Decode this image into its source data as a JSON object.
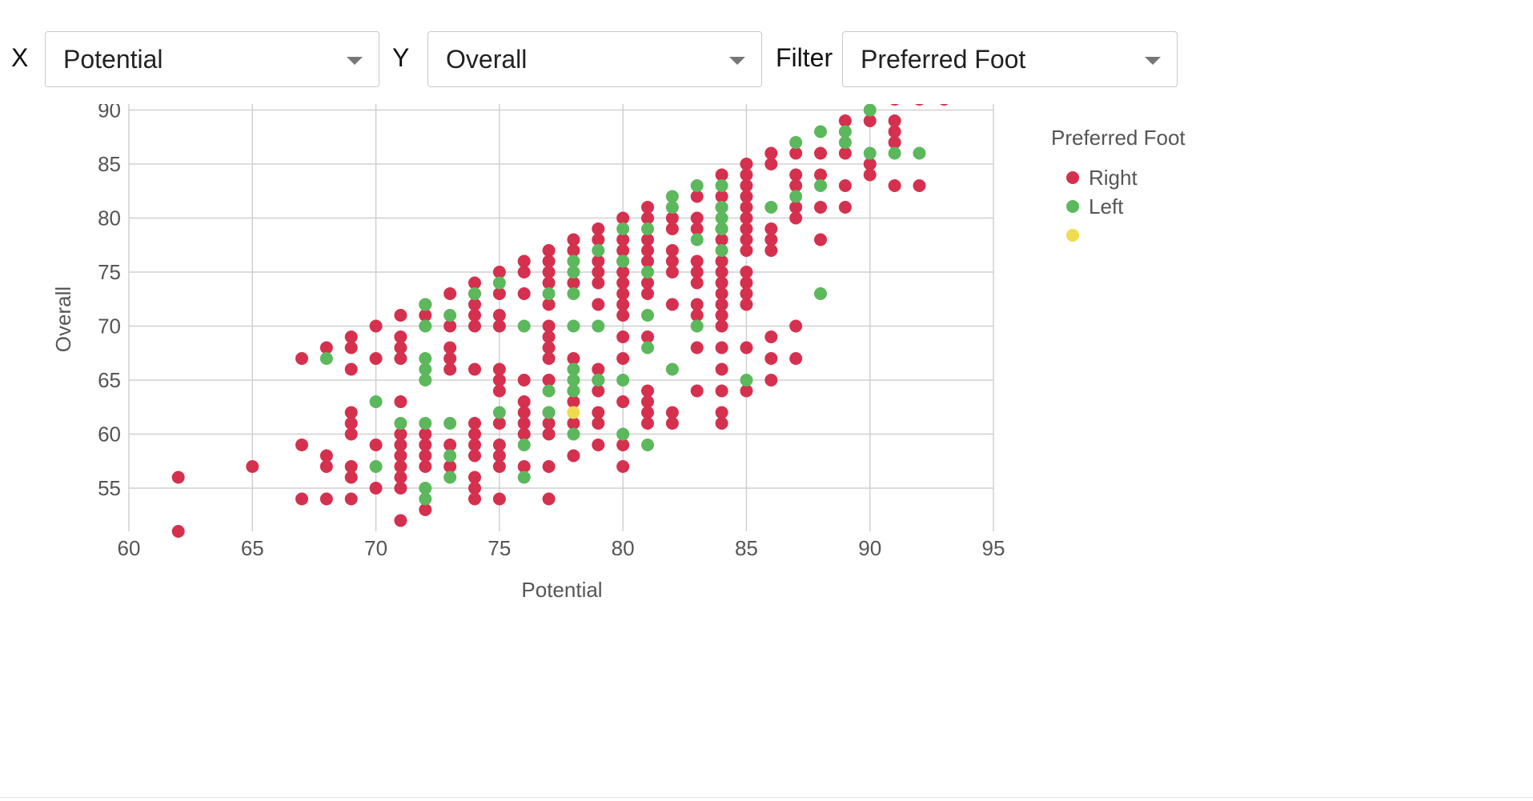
{
  "controls": {
    "x_label": "X",
    "x_value": "Potential",
    "y_label": "Y",
    "y_value": "Overall",
    "filter_label": "Filter",
    "filter_value": "Preferred Foot"
  },
  "chart_data": {
    "type": "scatter",
    "xlabel": "Potential",
    "ylabel": "Overall",
    "xlim": [
      60,
      95
    ],
    "ylim": [
      51,
      91
    ],
    "x_ticks": [
      60,
      65,
      70,
      75,
      80,
      85,
      90,
      95
    ],
    "y_ticks": [
      55,
      60,
      65,
      70,
      75,
      80,
      85,
      90
    ],
    "grid": true,
    "legend": {
      "title": "Preferred Foot",
      "placement": "right"
    },
    "series": [
      {
        "name": "Right",
        "color": "#d6304f",
        "points": [
          [
            62,
            56
          ],
          [
            62,
            51
          ],
          [
            65,
            57
          ],
          [
            67,
            67
          ],
          [
            67,
            59
          ],
          [
            67,
            54
          ],
          [
            68,
            68
          ],
          [
            68,
            58
          ],
          [
            68,
            57
          ],
          [
            68,
            54
          ],
          [
            69,
            69
          ],
          [
            69,
            68
          ],
          [
            69,
            66
          ],
          [
            69,
            62
          ],
          [
            69,
            61
          ],
          [
            69,
            60
          ],
          [
            69,
            57
          ],
          [
            69,
            56
          ],
          [
            69,
            54
          ],
          [
            70,
            70
          ],
          [
            70,
            67
          ],
          [
            70,
            59
          ],
          [
            70,
            55
          ],
          [
            71,
            71
          ],
          [
            71,
            69
          ],
          [
            71,
            68
          ],
          [
            71,
            67
          ],
          [
            71,
            63
          ],
          [
            71,
            60
          ],
          [
            71,
            59
          ],
          [
            71,
            58
          ],
          [
            71,
            57
          ],
          [
            71,
            56
          ],
          [
            71,
            55
          ],
          [
            71,
            52
          ],
          [
            72,
            72
          ],
          [
            72,
            71
          ],
          [
            72,
            60
          ],
          [
            72,
            59
          ],
          [
            72,
            58
          ],
          [
            72,
            57
          ],
          [
            72,
            53
          ],
          [
            73,
            73
          ],
          [
            73,
            70
          ],
          [
            73,
            68
          ],
          [
            73,
            67
          ],
          [
            73,
            66
          ],
          [
            73,
            59
          ],
          [
            73,
            57
          ],
          [
            74,
            74
          ],
          [
            74,
            73
          ],
          [
            74,
            72
          ],
          [
            74,
            71
          ],
          [
            74,
            70
          ],
          [
            74,
            66
          ],
          [
            74,
            61
          ],
          [
            74,
            60
          ],
          [
            74,
            59
          ],
          [
            74,
            58
          ],
          [
            74,
            56
          ],
          [
            74,
            55
          ],
          [
            74,
            54
          ],
          [
            75,
            75
          ],
          [
            75,
            73
          ],
          [
            75,
            71
          ],
          [
            75,
            70
          ],
          [
            75,
            66
          ],
          [
            75,
            65
          ],
          [
            75,
            64
          ],
          [
            75,
            61
          ],
          [
            75,
            59
          ],
          [
            75,
            58
          ],
          [
            75,
            57
          ],
          [
            75,
            54
          ],
          [
            76,
            76
          ],
          [
            76,
            75
          ],
          [
            76,
            73
          ],
          [
            76,
            65
          ],
          [
            76,
            63
          ],
          [
            76,
            62
          ],
          [
            76,
            61
          ],
          [
            76,
            60
          ],
          [
            76,
            57
          ],
          [
            77,
            77
          ],
          [
            77,
            76
          ],
          [
            77,
            75
          ],
          [
            77,
            74
          ],
          [
            77,
            72
          ],
          [
            77,
            70
          ],
          [
            77,
            69
          ],
          [
            77,
            68
          ],
          [
            77,
            67
          ],
          [
            77,
            65
          ],
          [
            77,
            62
          ],
          [
            77,
            61
          ],
          [
            77,
            60
          ],
          [
            77,
            57
          ],
          [
            77,
            54
          ],
          [
            78,
            78
          ],
          [
            78,
            77
          ],
          [
            78,
            74
          ],
          [
            78,
            67
          ],
          [
            78,
            64
          ],
          [
            78,
            63
          ],
          [
            78,
            61
          ],
          [
            78,
            58
          ],
          [
            79,
            79
          ],
          [
            79,
            78
          ],
          [
            79,
            76
          ],
          [
            79,
            75
          ],
          [
            79,
            74
          ],
          [
            79,
            72
          ],
          [
            79,
            66
          ],
          [
            79,
            65
          ],
          [
            79,
            64
          ],
          [
            79,
            62
          ],
          [
            79,
            61
          ],
          [
            79,
            59
          ],
          [
            80,
            80
          ],
          [
            80,
            78
          ],
          [
            80,
            77
          ],
          [
            80,
            76
          ],
          [
            80,
            75
          ],
          [
            80,
            74
          ],
          [
            80,
            73
          ],
          [
            80,
            72
          ],
          [
            80,
            71
          ],
          [
            80,
            69
          ],
          [
            80,
            67
          ],
          [
            80,
            63
          ],
          [
            80,
            59
          ],
          [
            80,
            57
          ],
          [
            81,
            81
          ],
          [
            81,
            80
          ],
          [
            81,
            78
          ],
          [
            81,
            77
          ],
          [
            81,
            76
          ],
          [
            81,
            74
          ],
          [
            81,
            73
          ],
          [
            81,
            69
          ],
          [
            81,
            64
          ],
          [
            81,
            63
          ],
          [
            81,
            62
          ],
          [
            81,
            61
          ],
          [
            82,
            80
          ],
          [
            82,
            79
          ],
          [
            82,
            77
          ],
          [
            82,
            76
          ],
          [
            82,
            75
          ],
          [
            82,
            72
          ],
          [
            82,
            62
          ],
          [
            82,
            61
          ],
          [
            83,
            82
          ],
          [
            83,
            80
          ],
          [
            83,
            79
          ],
          [
            83,
            76
          ],
          [
            83,
            75
          ],
          [
            83,
            74
          ],
          [
            83,
            72
          ],
          [
            83,
            71
          ],
          [
            83,
            68
          ],
          [
            83,
            64
          ],
          [
            84,
            84
          ],
          [
            84,
            82
          ],
          [
            84,
            81
          ],
          [
            84,
            79
          ],
          [
            84,
            78
          ],
          [
            84,
            76
          ],
          [
            84,
            75
          ],
          [
            84,
            74
          ],
          [
            84,
            73
          ],
          [
            84,
            72
          ],
          [
            84,
            71
          ],
          [
            84,
            70
          ],
          [
            84,
            68
          ],
          [
            84,
            66
          ],
          [
            84,
            64
          ],
          [
            84,
            62
          ],
          [
            84,
            61
          ],
          [
            85,
            85
          ],
          [
            85,
            84
          ],
          [
            85,
            83
          ],
          [
            85,
            82
          ],
          [
            85,
            81
          ],
          [
            85,
            80
          ],
          [
            85,
            79
          ],
          [
            85,
            78
          ],
          [
            85,
            77
          ],
          [
            85,
            75
          ],
          [
            85,
            74
          ],
          [
            85,
            73
          ],
          [
            85,
            72
          ],
          [
            85,
            68
          ],
          [
            85,
            64
          ],
          [
            86,
            86
          ],
          [
            86,
            85
          ],
          [
            86,
            79
          ],
          [
            86,
            78
          ],
          [
            86,
            77
          ],
          [
            86,
            69
          ],
          [
            86,
            67
          ],
          [
            86,
            65
          ],
          [
            87,
            86
          ],
          [
            87,
            84
          ],
          [
            87,
            83
          ],
          [
            87,
            81
          ],
          [
            87,
            80
          ],
          [
            87,
            70
          ],
          [
            87,
            67
          ],
          [
            88,
            86
          ],
          [
            88,
            84
          ],
          [
            88,
            81
          ],
          [
            88,
            78
          ],
          [
            89,
            89
          ],
          [
            89,
            86
          ],
          [
            89,
            83
          ],
          [
            89,
            81
          ],
          [
            90,
            89
          ],
          [
            90,
            85
          ],
          [
            90,
            84
          ],
          [
            91,
            91
          ],
          [
            91,
            89
          ],
          [
            91,
            88
          ],
          [
            91,
            87
          ],
          [
            91,
            83
          ],
          [
            92,
            91
          ],
          [
            92,
            83
          ],
          [
            93,
            91
          ]
        ]
      },
      {
        "name": "Left",
        "color": "#5cb85c",
        "points": [
          [
            68,
            67
          ],
          [
            70,
            63
          ],
          [
            70,
            57
          ],
          [
            71,
            61
          ],
          [
            72,
            72
          ],
          [
            72,
            70
          ],
          [
            72,
            67
          ],
          [
            72,
            66
          ],
          [
            72,
            65
          ],
          [
            72,
            61
          ],
          [
            72,
            55
          ],
          [
            72,
            54
          ],
          [
            73,
            71
          ],
          [
            73,
            61
          ],
          [
            73,
            58
          ],
          [
            73,
            56
          ],
          [
            74,
            73
          ],
          [
            75,
            74
          ],
          [
            75,
            62
          ],
          [
            76,
            70
          ],
          [
            76,
            59
          ],
          [
            76,
            56
          ],
          [
            77,
            73
          ],
          [
            77,
            64
          ],
          [
            77,
            62
          ],
          [
            78,
            76
          ],
          [
            78,
            75
          ],
          [
            78,
            73
          ],
          [
            78,
            70
          ],
          [
            78,
            66
          ],
          [
            78,
            65
          ],
          [
            78,
            64
          ],
          [
            78,
            60
          ],
          [
            79,
            77
          ],
          [
            79,
            70
          ],
          [
            79,
            65
          ],
          [
            80,
            79
          ],
          [
            80,
            76
          ],
          [
            80,
            65
          ],
          [
            80,
            60
          ],
          [
            81,
            79
          ],
          [
            81,
            75
          ],
          [
            81,
            71
          ],
          [
            81,
            68
          ],
          [
            81,
            59
          ],
          [
            82,
            82
          ],
          [
            82,
            81
          ],
          [
            82,
            66
          ],
          [
            83,
            83
          ],
          [
            83,
            78
          ],
          [
            83,
            70
          ],
          [
            84,
            83
          ],
          [
            84,
            81
          ],
          [
            84,
            80
          ],
          [
            84,
            79
          ],
          [
            84,
            77
          ],
          [
            85,
            65
          ],
          [
            86,
            81
          ],
          [
            87,
            87
          ],
          [
            87,
            82
          ],
          [
            88,
            88
          ],
          [
            88,
            83
          ],
          [
            88,
            73
          ],
          [
            89,
            88
          ],
          [
            89,
            87
          ],
          [
            90,
            90
          ],
          [
            90,
            86
          ],
          [
            91,
            86
          ],
          [
            92,
            86
          ]
        ]
      },
      {
        "name": "",
        "color": "#f2da4e",
        "points": [
          [
            78,
            62
          ]
        ]
      }
    ]
  }
}
